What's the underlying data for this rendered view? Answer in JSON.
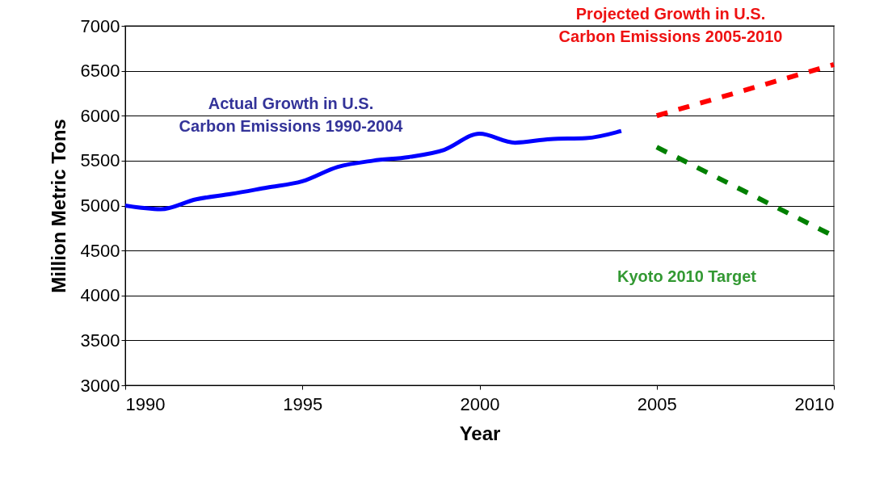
{
  "chart_data": {
    "type": "line",
    "xlabel": "Year",
    "ylabel": "Million Metric Tons",
    "xlim": [
      1990,
      2010
    ],
    "xticks": [
      1990,
      1995,
      2000,
      2005,
      2010
    ],
    "ylim": [
      3000,
      7000
    ],
    "yticks": [
      3000,
      3500,
      4000,
      4500,
      5000,
      5500,
      6000,
      6500,
      7000
    ],
    "grid": "y",
    "marker": "none",
    "series": [
      {
        "color": "#0000ff",
        "line_style": "solid",
        "x": [
          1990,
          1991,
          1992,
          1993,
          1994,
          1995,
          1996,
          1997,
          1998,
          1999,
          2000,
          2001,
          2002,
          2003,
          2004
        ],
        "values": [
          5000,
          4960,
          5070,
          5130,
          5200,
          5270,
          5430,
          5500,
          5540,
          5620,
          5800,
          5700,
          5740,
          5750,
          5830
        ]
      },
      {
        "color": "#ff0000",
        "line_style": "dashed",
        "x": [
          2005,
          2010
        ],
        "values": [
          6000,
          6570
        ]
      },
      {
        "color": "#008000",
        "line_style": "dashed",
        "x": [
          2005,
          2010
        ],
        "values": [
          5650,
          4660
        ]
      }
    ],
    "annotations": [
      "Actual Growth in U.S.\nCarbon Emissions 1990-2004",
      "Projected Growth in U.S.\nCarbon Emissions 2005-2010",
      "Kyoto 2010 Target"
    ]
  }
}
